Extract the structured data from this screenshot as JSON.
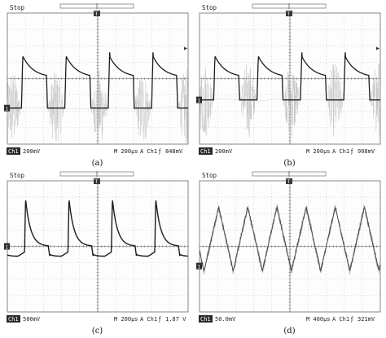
{
  "panels": [
    {
      "label": "(a)",
      "status": "Stop",
      "channel": "Ch1",
      "volts_div": "200mV",
      "timebase": "M 200µs",
      "trigger_src": "A  Ch1",
      "trigger_slope": "ƒ",
      "trigger_level": "848mV",
      "show_right_marker": true
    },
    {
      "label": "(b)",
      "status": "Stop",
      "channel": "Ch1",
      "volts_div": "200mV",
      "timebase": "M 200µs",
      "trigger_src": "A  Ch1",
      "trigger_slope": "ƒ",
      "trigger_level": "908mV",
      "show_right_marker": true
    },
    {
      "label": "(c)",
      "status": "Stop",
      "channel": "Ch1",
      "volts_div": "500mV",
      "timebase": "M 200µs",
      "trigger_src": "A  Ch1",
      "trigger_slope": "ƒ",
      "trigger_level": "1.87 V",
      "show_right_marker": false
    },
    {
      "label": "(d)",
      "status": "Stop",
      "channel": "Ch1",
      "volts_div": "50.0mV",
      "timebase": "M 400µs",
      "trigger_src": "A  Ch1",
      "trigger_slope": "ƒ",
      "trigger_level": "321mV",
      "show_right_marker": false
    }
  ],
  "colors": {
    "trace": "#1c1c1c",
    "noise": "#b4b4b4",
    "grid": "#9a9a9a",
    "frame": "#6a6a6a",
    "text": "#222222"
  },
  "chart_data": [
    {
      "type": "line",
      "panel": "a",
      "x_divisions": 10,
      "y_divisions": 8,
      "waveform": "periodic spike with exponential decay, noisy burst between cycles",
      "period_div": 2.4,
      "ground_level_div": -1.8,
      "peak_div": 1.6,
      "decay_end_div": 0.05,
      "noise_burst": true
    },
    {
      "type": "line",
      "panel": "b",
      "x_divisions": 10,
      "y_divisions": 8,
      "waveform": "periodic spike with exponential decay, noisy burst between cycles",
      "period_div": 2.4,
      "ground_level_div": -1.3,
      "peak_div": 1.6,
      "decay_end_div": 0.05,
      "noise_burst": true
    },
    {
      "type": "line",
      "panel": "c",
      "x_divisions": 10,
      "y_divisions": 8,
      "waveform": "periodic spike with decay to baseline and negative step",
      "period_div": 2.4,
      "ground_level_div": 0.0,
      "peak_div": 2.9,
      "negative_level_div": -0.6,
      "noise_burst": false
    },
    {
      "type": "line",
      "panel": "d",
      "x_divisions": 10,
      "y_divisions": 8,
      "waveform": "noisy triangular oscillation",
      "cycles_visible": 6.2,
      "high_level_div": 2.4,
      "low_level_div": -1.5,
      "noise_burst": true
    }
  ]
}
